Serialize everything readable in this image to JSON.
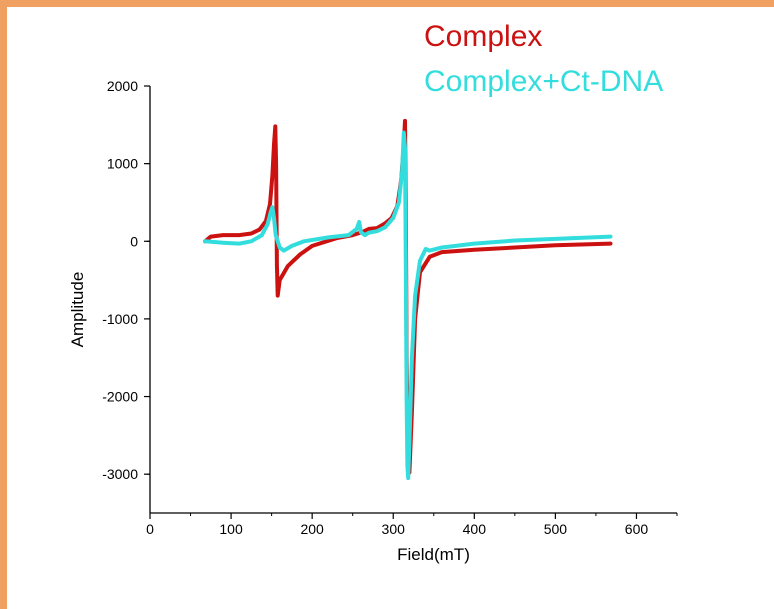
{
  "chart_data": {
    "type": "line",
    "title": "",
    "xlabel": "Field(mT)",
    "ylabel": "Amplitude",
    "xlim": [
      0,
      650
    ],
    "ylim": [
      -3500,
      2000
    ],
    "x_ticks": [
      0,
      100,
      200,
      300,
      400,
      500,
      600
    ],
    "y_ticks": [
      -3000,
      -2000,
      -1000,
      0,
      1000,
      2000
    ],
    "grid": false,
    "legend_position": "top-right",
    "series": [
      {
        "name": "Complex",
        "color": "#cc1111",
        "points": [
          [
            68,
            0
          ],
          [
            75,
            60
          ],
          [
            90,
            80
          ],
          [
            110,
            80
          ],
          [
            125,
            100
          ],
          [
            135,
            150
          ],
          [
            143,
            260
          ],
          [
            148,
            480
          ],
          [
            151,
            850
          ],
          [
            153,
            1250
          ],
          [
            154.5,
            1480
          ],
          [
            155.5,
            1000
          ],
          [
            156.5,
            -300
          ],
          [
            157.5,
            -700
          ],
          [
            160,
            -500
          ],
          [
            170,
            -320
          ],
          [
            185,
            -170
          ],
          [
            200,
            -60
          ],
          [
            230,
            40
          ],
          [
            250,
            80
          ],
          [
            262,
            120
          ],
          [
            270,
            160
          ],
          [
            280,
            170
          ],
          [
            290,
            230
          ],
          [
            298,
            300
          ],
          [
            305,
            450
          ],
          [
            310,
            800
          ],
          [
            313,
            1250
          ],
          [
            314.5,
            1550
          ],
          [
            315.5,
            500
          ],
          [
            316.5,
            -1500
          ],
          [
            318,
            -2600
          ],
          [
            320,
            -2980
          ],
          [
            323,
            -2200
          ],
          [
            327,
            -1000
          ],
          [
            333,
            -400
          ],
          [
            345,
            -200
          ],
          [
            360,
            -140
          ],
          [
            400,
            -110
          ],
          [
            450,
            -80
          ],
          [
            500,
            -50
          ],
          [
            568,
            -30
          ]
        ]
      },
      {
        "name": "Complex+Ct-DNA",
        "color": "#33dddd",
        "points": [
          [
            68,
            0
          ],
          [
            90,
            -20
          ],
          [
            110,
            -30
          ],
          [
            125,
            0
          ],
          [
            138,
            80
          ],
          [
            145,
            220
          ],
          [
            149,
            380
          ],
          [
            151,
            440
          ],
          [
            153,
            300
          ],
          [
            155,
            80
          ],
          [
            160,
            -80
          ],
          [
            165,
            -120
          ],
          [
            175,
            -60
          ],
          [
            190,
            0
          ],
          [
            220,
            50
          ],
          [
            245,
            80
          ],
          [
            255,
            160
          ],
          [
            258,
            250
          ],
          [
            260,
            120
          ],
          [
            265,
            80
          ],
          [
            270,
            110
          ],
          [
            280,
            130
          ],
          [
            290,
            180
          ],
          [
            300,
            300
          ],
          [
            307,
            500
          ],
          [
            311,
            900
          ],
          [
            313,
            1400
          ],
          [
            314.5,
            1200
          ],
          [
            315.5,
            -300
          ],
          [
            316.5,
            -2000
          ],
          [
            317.5,
            -2900
          ],
          [
            318.5,
            -3050
          ],
          [
            320,
            -2600
          ],
          [
            323,
            -1500
          ],
          [
            327,
            -700
          ],
          [
            333,
            -250
          ],
          [
            340,
            -100
          ],
          [
            345,
            -120
          ],
          [
            360,
            -80
          ],
          [
            400,
            -30
          ],
          [
            450,
            10
          ],
          [
            500,
            30
          ],
          [
            568,
            60
          ]
        ]
      }
    ]
  }
}
